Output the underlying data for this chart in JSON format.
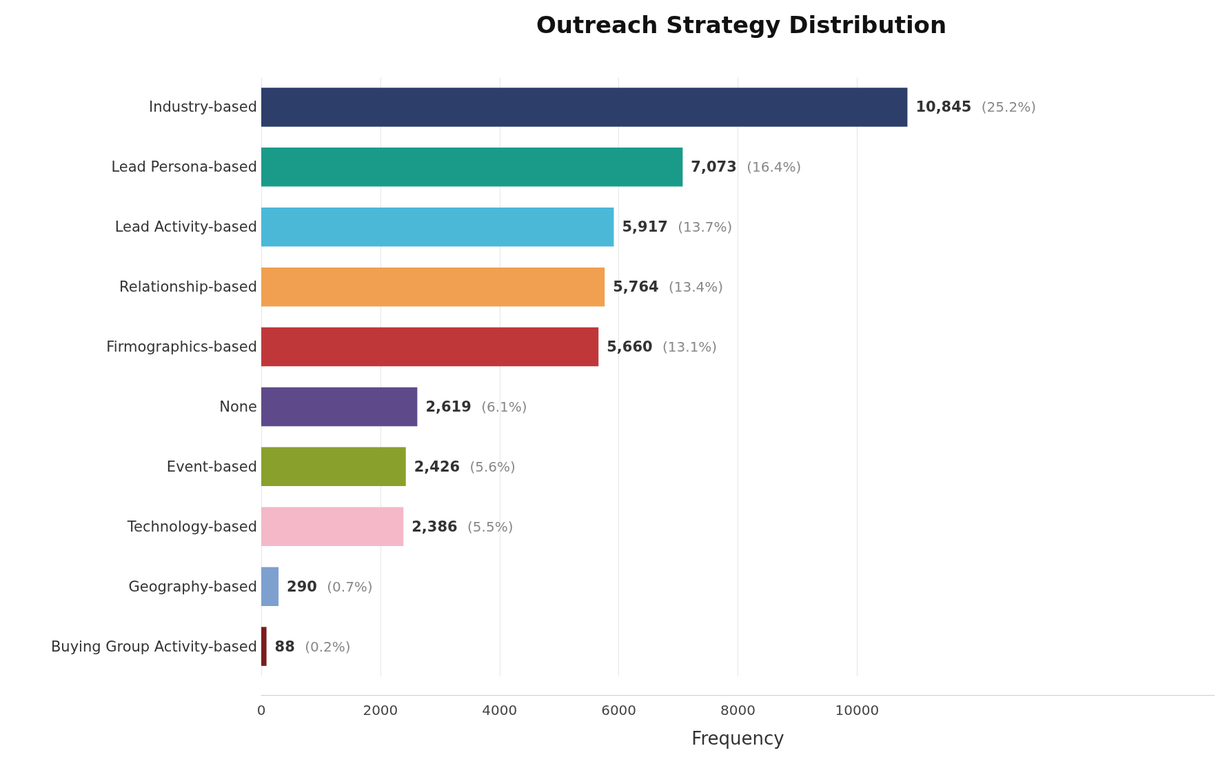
{
  "chart_data": {
    "type": "bar",
    "orientation": "horizontal",
    "title": "Outreach Strategy Distribution",
    "xlabel": "Frequency",
    "categories": [
      "Industry-based",
      "Lead Persona-based",
      "Lead Activity-based",
      "Relationship-based",
      "Firmographics-based",
      "None",
      "Event-based",
      "Technology-based",
      "Geography-based",
      "Buying Group Activity-based"
    ],
    "values": [
      10845,
      7073,
      5917,
      5764,
      5660,
      2619,
      2426,
      2386,
      290,
      88
    ],
    "colors": [
      "#2d3e6b",
      "#1a9b8a",
      "#4bb8d8",
      "#f0a050",
      "#c0373a",
      "#5e4a8a",
      "#8aa02c",
      "#f4b8c8",
      "#7ea0cf",
      "#7a1c1e"
    ],
    "value_labels": [
      "10,845 (25.2%)",
      "7,073 (16.4%)",
      "5,917 (13.7%)",
      "5,764 (13.4%)",
      "5,660 (13.1%)",
      "2,619 (6.1%)",
      "2,426 (5.6%)",
      "2,386 (5.5%)",
      "290 (0.7%)",
      "88 (0.2%)"
    ],
    "xlim": [
      0,
      16000
    ],
    "xticks": [
      0,
      2000,
      4000,
      6000,
      8000,
      10000
    ],
    "grid": "x"
  }
}
